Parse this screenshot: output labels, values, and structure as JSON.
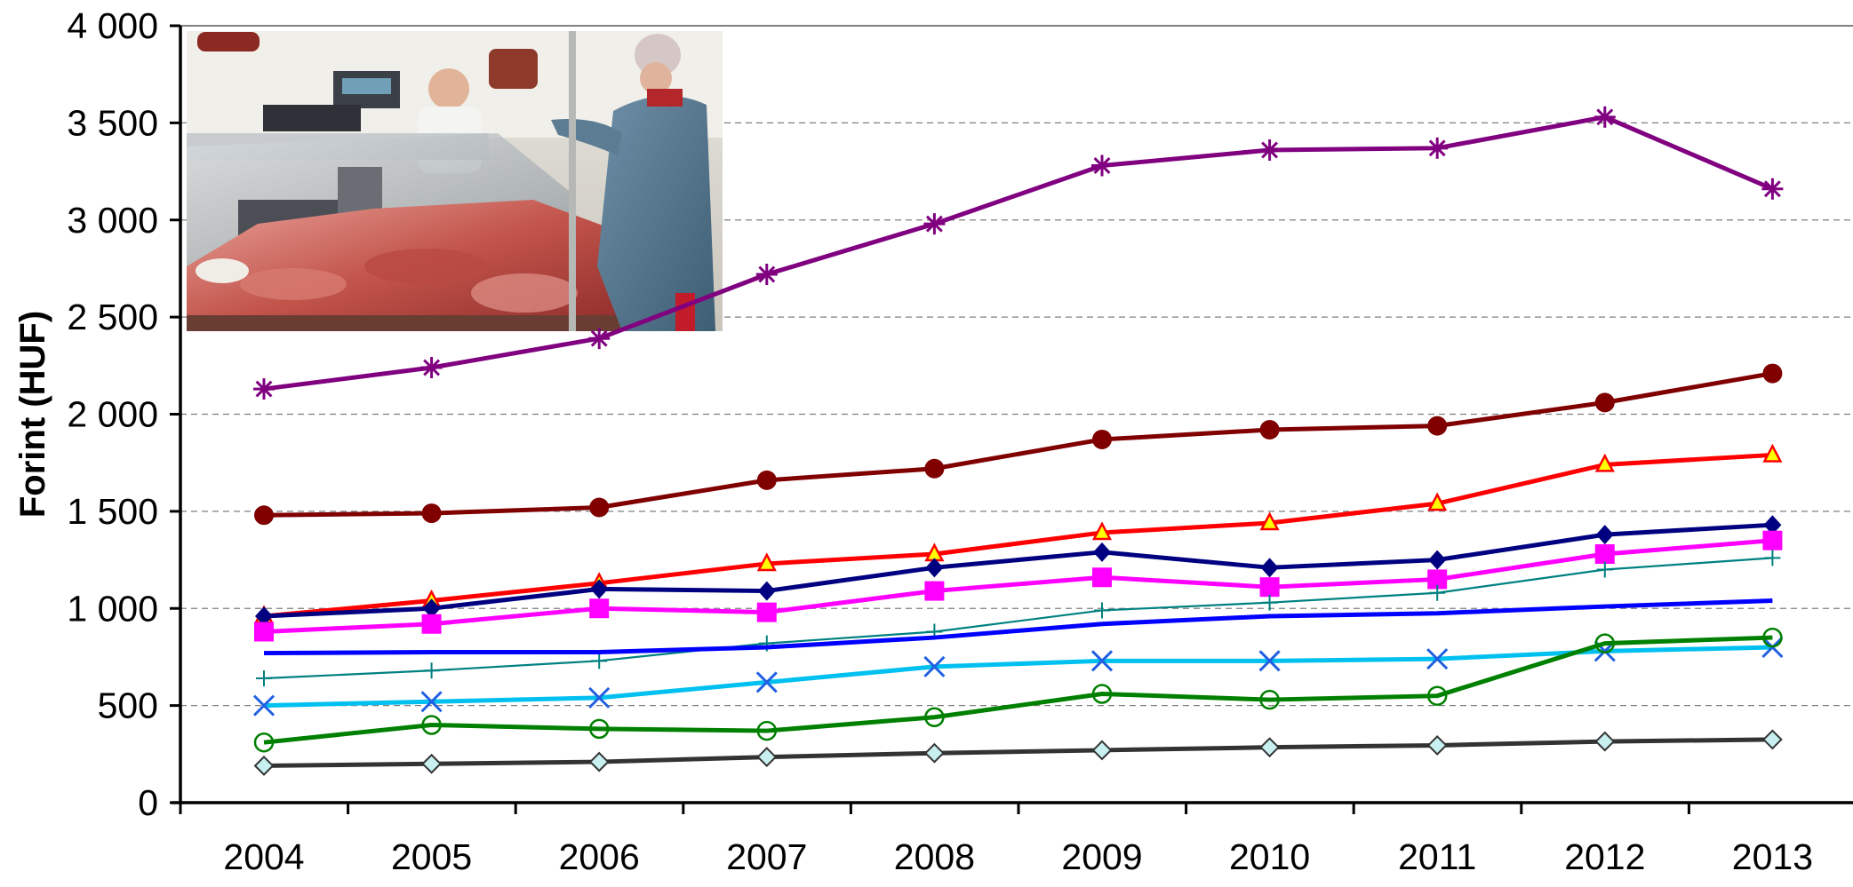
{
  "chart_data": {
    "type": "line",
    "title": "",
    "xlabel": "",
    "ylabel": "Forint (HUF)",
    "categories": [
      "2004",
      "2005",
      "2006",
      "2007",
      "2008",
      "2009",
      "2010",
      "2011",
      "2012",
      "2013"
    ],
    "y_ticks": [
      "0",
      "500",
      "1 000",
      "1 500",
      "2 000",
      "2 500",
      "3 000",
      "3 500",
      "4 000"
    ],
    "ylim": [
      0,
      4000
    ],
    "grid": "horizontal dashed",
    "legend": "none",
    "inset_image": "photo of a butcher shop counter with meat",
    "series": [
      {
        "color": "#800080",
        "marker": "asterisk",
        "values": [
          2130,
          2240,
          2390,
          2720,
          2980,
          3280,
          3360,
          3370,
          3530,
          3160
        ]
      },
      {
        "color": "#800000",
        "marker": "circle",
        "values": [
          1480,
          1490,
          1520,
          1660,
          1720,
          1870,
          1920,
          1940,
          2060,
          2210
        ]
      },
      {
        "color": "#FF0000",
        "marker": "triangle",
        "values": [
          960,
          1040,
          1130,
          1230,
          1280,
          1390,
          1440,
          1540,
          1740,
          1790
        ]
      },
      {
        "color": "#000080",
        "marker": "diamond",
        "values": [
          960,
          1000,
          1100,
          1090,
          1210,
          1290,
          1210,
          1250,
          1380,
          1430
        ]
      },
      {
        "color": "#FF00FF",
        "marker": "square",
        "values": [
          880,
          920,
          1000,
          980,
          1090,
          1160,
          1110,
          1150,
          1280,
          1350
        ]
      },
      {
        "color": "#008080",
        "marker": "plus",
        "values": [
          640,
          680,
          730,
          820,
          880,
          990,
          1030,
          1080,
          1200,
          1260
        ]
      },
      {
        "color": "#0000FF",
        "marker": "none",
        "values": [
          770,
          775,
          775,
          800,
          850,
          920,
          960,
          975,
          1010,
          1040
        ]
      },
      {
        "color": "#00C0F0",
        "marker": "x",
        "values": [
          500,
          520,
          540,
          620,
          700,
          730,
          730,
          740,
          780,
          800
        ]
      },
      {
        "color": "#008000",
        "marker": "open-circle",
        "values": [
          310,
          400,
          380,
          370,
          440,
          560,
          530,
          550,
          820,
          850
        ]
      },
      {
        "color": "#333333",
        "marker": "light-diamond",
        "values": [
          190,
          200,
          210,
          235,
          255,
          270,
          285,
          295,
          315,
          325
        ]
      }
    ]
  }
}
